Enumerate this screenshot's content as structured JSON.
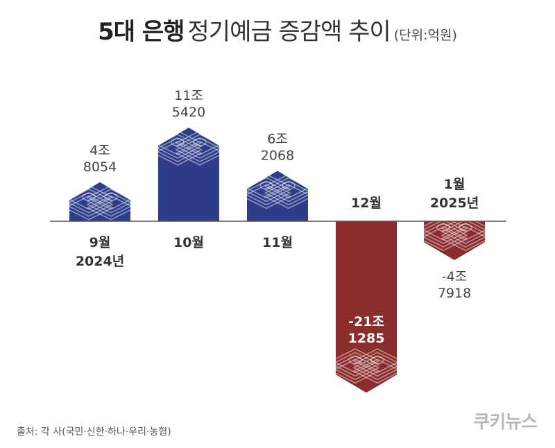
{
  "title": {
    "bold": "5대 은행",
    "regular": "정기예금 증감액 추이",
    "unit": "(단위:억원)"
  },
  "source": "출처: 각 사(국민·신한·하나·우리·농협)",
  "logo": "쿠키뉴스",
  "colors": {
    "positive": "#2e3d8a",
    "negative": "#8b2d2d",
    "axis": "#555555"
  },
  "chart_data": {
    "type": "bar",
    "title": "5대 은행 정기예금 증감액 추이",
    "unit": "억원",
    "categories": [
      "9월",
      "10월",
      "11월",
      "12월",
      "1월"
    ],
    "category_sublabels": [
      "2024년",
      "",
      "",
      "",
      "2025년"
    ],
    "values": [
      48054,
      115420,
      62068,
      -211285,
      -47918
    ],
    "value_labels": [
      [
        "4조",
        "8054"
      ],
      [
        "11조",
        "5420"
      ],
      [
        "6조",
        "2068"
      ],
      [
        "-21조",
        "1285"
      ],
      [
        "-4조",
        "7918"
      ]
    ],
    "icon": "money-stack-icon",
    "grid": false,
    "legend": "none"
  }
}
